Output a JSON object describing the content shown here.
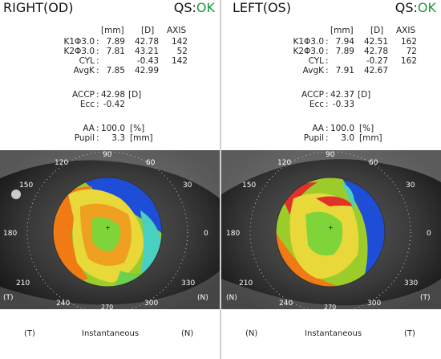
{
  "right_panel": {
    "title": "RIGHT(OD)",
    "qs_prefix": "QS:",
    "qs_status": "OK",
    "headers": {
      "mm": "[mm]",
      "d": "[D]",
      "axis": "AXIS"
    },
    "rows": [
      {
        "label": "K1Φ3.0",
        "mm": "7.89",
        "d": "42.78",
        "axis": "142"
      },
      {
        "label": "K2Φ3.0",
        "mm": "7.81",
        "d": "43.21",
        "axis": "52"
      },
      {
        "label": "CYL",
        "mm": "",
        "d": "-0.43",
        "axis": "142"
      },
      {
        "label": "AvgK",
        "mm": "7.85",
        "d": "42.99",
        "axis": ""
      }
    ],
    "accp": {
      "label": "ACCP",
      "value": "42.98",
      "unit": "[D]"
    },
    "ecc": {
      "label": "Ecc",
      "value": "-0.42"
    },
    "aa": {
      "label": "AA",
      "value": "100.0",
      "unit": "[%]"
    },
    "pupil": {
      "label": "Pupil",
      "value": "3.3",
      "unit": "[mm]"
    },
    "axis_labels": {
      "deg90": "90",
      "deg60": "60",
      "deg120": "120",
      "deg150": "150",
      "deg30": "30",
      "deg180": "180",
      "deg0": "0",
      "deg210": "210",
      "deg330": "330",
      "deg240": "240",
      "deg300": "300",
      "deg270": "270",
      "left_marker": "(T)",
      "right_marker": "(N)"
    },
    "footer": {
      "left": "(T)",
      "center": "Instantaneous",
      "right": "(N)"
    }
  },
  "left_panel": {
    "title": "LEFT(OS)",
    "qs_prefix": "QS:",
    "qs_status": "OK",
    "headers": {
      "mm": "[mm]",
      "d": "[D]",
      "axis": "AXIS"
    },
    "rows": [
      {
        "label": "K1Φ3.0",
        "mm": "7.94",
        "d": "42.51",
        "axis": "162"
      },
      {
        "label": "K2Φ3.0",
        "mm": "7.89",
        "d": "42.78",
        "axis": "72"
      },
      {
        "label": "CYL",
        "mm": "",
        "d": "-0.27",
        "axis": "162"
      },
      {
        "label": "AvgK",
        "mm": "7.91",
        "d": "42.67",
        "axis": ""
      }
    ],
    "accp": {
      "label": "ACCP",
      "value": "42.37",
      "unit": "[D]"
    },
    "ecc": {
      "label": "Ecc",
      "value": "-0.33"
    },
    "aa": {
      "label": "AA",
      "value": "100.0",
      "unit": "[%]"
    },
    "pupil": {
      "label": "Pupil",
      "value": "3.0",
      "unit": "[mm]"
    },
    "axis_labels": {
      "deg90": "90",
      "deg60": "60",
      "deg120": "120",
      "deg150": "150",
      "deg30": "30",
      "deg180": "180",
      "deg0": "0",
      "deg210": "210",
      "deg330": "330",
      "deg240": "240",
      "deg300": "300",
      "deg270": "270",
      "left_marker": "(N)",
      "right_marker": "(T)"
    },
    "footer": {
      "left": "(N)",
      "center": "Instantaneous",
      "right": "(T)"
    }
  },
  "colors": {
    "ok_green": "#1a9a3a",
    "divider": "#cfcfcf"
  }
}
